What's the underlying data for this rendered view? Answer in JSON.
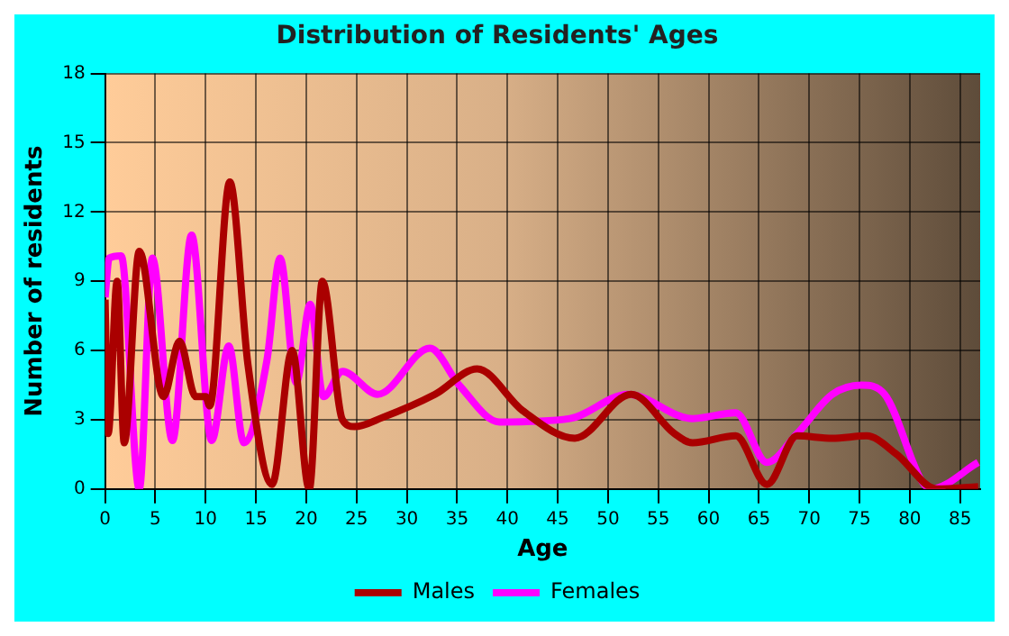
{
  "chart_data": {
    "type": "line",
    "title": "Distribution of Residents' Ages",
    "xlabel": "Age",
    "ylabel": "Number of residents",
    "xlim": [
      0,
      87
    ],
    "xticks": [
      0,
      5,
      10,
      15,
      20,
      25,
      30,
      35,
      40,
      45,
      50,
      55,
      60,
      65,
      70,
      75,
      80,
      85
    ],
    "ylim": [
      0,
      18
    ],
    "yticks": [
      0,
      3,
      6,
      9,
      12,
      15,
      18
    ],
    "grid": true,
    "legend": "bottom",
    "marker": "none",
    "line_style": "solid",
    "series": [
      {
        "name": "Males",
        "color": "#aa0000",
        "x": [
          0,
          0.3,
          1.2,
          1.9,
          3.4,
          5.8,
          7.4,
          9,
          10,
          10.4,
          12.4,
          14.2,
          16.6,
          18.6,
          20.3,
          21.6,
          23.6,
          24.8,
          27.6,
          32.8,
          37,
          41.5,
          46.7,
          52.3,
          56.6,
          58.4,
          62.7,
          65.8,
          68.8,
          72.3,
          75.7,
          78.7,
          82.7,
          86.8
        ],
        "values": [
          8.2,
          2.4,
          9,
          2,
          10.3,
          4,
          6.4,
          4,
          4,
          3.6,
          13.3,
          5.4,
          0.2,
          6,
          0,
          9,
          3,
          2.7,
          3.1,
          4.1,
          5.2,
          3.4,
          2.2,
          4.1,
          2.4,
          2,
          2.3,
          0.2,
          2.3,
          2.2,
          2.3,
          1.5,
          0,
          0.1
        ]
      },
      {
        "name": "Females",
        "color": "#ff00ff",
        "x": [
          0,
          0.4,
          1.6,
          3.4,
          4.7,
          6.7,
          8.6,
          10.6,
          12.3,
          13.8,
          16.1,
          17.4,
          19,
          20.4,
          21.7,
          23.6,
          27.1,
          32.3,
          35.2,
          39.2,
          46.2,
          52,
          58.4,
          62.7,
          65.8,
          68.8,
          72.3,
          75.2,
          77.5,
          82.1,
          86.8
        ],
        "values": [
          8.3,
          10,
          10.1,
          0,
          10,
          2.1,
          11,
          2.1,
          6.2,
          2,
          5.6,
          10,
          4.6,
          8,
          4,
          5.1,
          4.1,
          6.1,
          4.5,
          2.9,
          3.05,
          4.1,
          3.05,
          3.3,
          1.15,
          2.4,
          4.1,
          4.5,
          4.1,
          0,
          1.15
        ]
      }
    ]
  }
}
